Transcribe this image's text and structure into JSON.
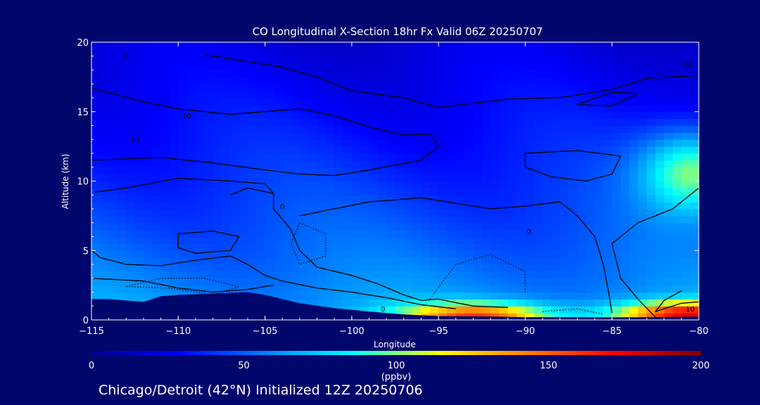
{
  "chart_data": {
    "type": "heatmap",
    "title": "CO Longitudinal X-Section 18hr  Fx Valid 06Z 20250707",
    "xlabel": "Longitude",
    "ylabel": "Altitude (km)",
    "xlim": [
      -115,
      -80
    ],
    "ylim": [
      0,
      20
    ],
    "x_ticks": [
      -115,
      -110,
      -105,
      -100,
      -95,
      -90,
      -85,
      -80
    ],
    "x_tick_labels": [
      "−115",
      "−110",
      "−105",
      "−100",
      "−95",
      "−90",
      "−85",
      "−80"
    ],
    "y_ticks": [
      0,
      5,
      10,
      15,
      20
    ],
    "y_tick_labels": [
      "0",
      "5",
      "10",
      "15",
      "20"
    ],
    "colorbar": {
      "range": [
        0,
        200
      ],
      "ticks": [
        0,
        50,
        100,
        150,
        200
      ],
      "tick_labels": [
        "0",
        "50",
        "100",
        "150",
        "200"
      ],
      "unit": "(ppbv)",
      "colors": [
        "#000090",
        "#0000ff",
        "#0080ff",
        "#00ffff",
        "#ffff00",
        "#ff8000",
        "#ff0000",
        "#800000"
      ]
    },
    "contour_labels": [
      "0",
      "10"
    ],
    "terrain_km": [
      [
        -115,
        1.5
      ],
      [
        -114,
        1.5
      ],
      [
        -113,
        1.4
      ],
      [
        -112,
        1.3
      ],
      [
        -111,
        1.7
      ],
      [
        -110,
        1.8
      ],
      [
        -108,
        1.9
      ],
      [
        -106,
        2.0
      ],
      [
        -105,
        1.8
      ],
      [
        -103,
        1.2
      ],
      [
        -101,
        0.85
      ],
      [
        -99,
        0.6
      ],
      [
        -97,
        0.4
      ],
      [
        -95,
        0.28
      ],
      [
        -92,
        0.25
      ],
      [
        -90,
        0.2
      ],
      [
        -88,
        0.2
      ],
      [
        -85,
        0.18
      ],
      [
        -83,
        0.2
      ],
      [
        -80,
        0.25
      ]
    ],
    "field": {
      "hot_spots": [
        {
          "lon": -93,
          "alt_km": 0.3,
          "value": 160
        },
        {
          "lon": -80.5,
          "alt_km": 0.4,
          "value": 180
        },
        {
          "lon": -80.5,
          "alt_km": 10.5,
          "value": 100
        }
      ],
      "upper_value": 20,
      "lower_value": 70
    }
  },
  "footer": {
    "text": "Chicago/Detroit (42°N) Initialized 12Z 20250706"
  }
}
